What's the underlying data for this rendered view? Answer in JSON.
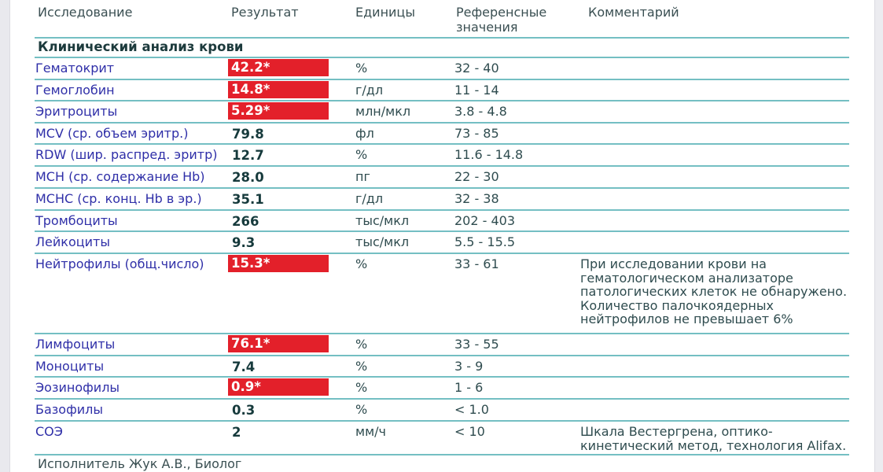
{
  "header": {
    "col_test": "Исследование",
    "col_result": "Результат",
    "col_units": "Единицы",
    "col_ref_line1": "Референсные",
    "col_ref_line2": "значения",
    "col_comment": "Комментарий"
  },
  "section_title": "Клинический анализ крови",
  "rows": [
    {
      "name": "Гематокрит",
      "result": "42.2*",
      "flag": true,
      "units": "%",
      "ref": "32 - 40",
      "comment": ""
    },
    {
      "name": "Гемоглобин",
      "result": "14.8*",
      "flag": true,
      "units": "г/дл",
      "ref": "11 - 14",
      "comment": ""
    },
    {
      "name": "Эритроциты",
      "result": "5.29*",
      "flag": true,
      "units": "млн/мкл",
      "ref": "3.8 - 4.8",
      "comment": ""
    },
    {
      "name": "MCV (ср. объем эритр.)",
      "result": "79.8",
      "flag": false,
      "units": "фл",
      "ref": "73 - 85",
      "comment": ""
    },
    {
      "name": "RDW (шир. распред. эритр)",
      "result": "12.7",
      "flag": false,
      "units": "%",
      "ref": "11.6 - 14.8",
      "comment": ""
    },
    {
      "name": "MCH (ср. содержание Hb)",
      "result": "28.0",
      "flag": false,
      "units": "пг",
      "ref": "22 - 30",
      "comment": ""
    },
    {
      "name": "MCHC (ср. конц. Hb в эр.)",
      "result": "35.1",
      "flag": false,
      "units": "г/дл",
      "ref": "32 - 38",
      "comment": ""
    },
    {
      "name": "Тромбоциты",
      "result": "266",
      "flag": false,
      "units": "тыс/мкл",
      "ref": "202 - 403",
      "comment": ""
    },
    {
      "name": "Лейкоциты",
      "result": "9.3",
      "flag": false,
      "units": "тыс/мкл",
      "ref": "5.5 - 15.5",
      "comment": ""
    },
    {
      "name": "Нейтрофилы (общ.число)",
      "result": "15.3*",
      "flag": true,
      "units": "%",
      "ref": "33 - 61",
      "comment_lines": [
        "При исследовании крови на",
        "гематологическом анализаторе",
        "патологических клеток не обнаружено.",
        "Количество палочкоядерных",
        "нейтрофилов не превышает 6%"
      ]
    },
    {
      "name": "Лимфоциты",
      "result": "76.1*",
      "flag": true,
      "units": "%",
      "ref": "33 - 55",
      "comment": ""
    },
    {
      "name": "Моноциты",
      "result": "7.4",
      "flag": false,
      "units": "%",
      "ref": "3 - 9",
      "comment": ""
    },
    {
      "name": "Эозинофилы",
      "result": "0.9*",
      "flag": true,
      "units": "%",
      "ref": "1 - 6",
      "comment": ""
    },
    {
      "name": "Базофилы",
      "result": "0.3",
      "flag": false,
      "units": "%",
      "ref": "< 1.0",
      "comment": ""
    },
    {
      "name": "СОЭ",
      "result": "2",
      "flag": false,
      "units": "мм/ч",
      "ref": "< 10",
      "comment_lines": [
        "Шкала Вестергрена, оптико-",
        "кинетический метод, технология Alifax."
      ]
    }
  ],
  "footer": "Исполнитель Жук А.В., Биолог",
  "colors": {
    "flag_bg": "#e3202a",
    "rule": "#74bfc3",
    "name_text": "#2f2fa8",
    "result_text": "#163a3c"
  }
}
